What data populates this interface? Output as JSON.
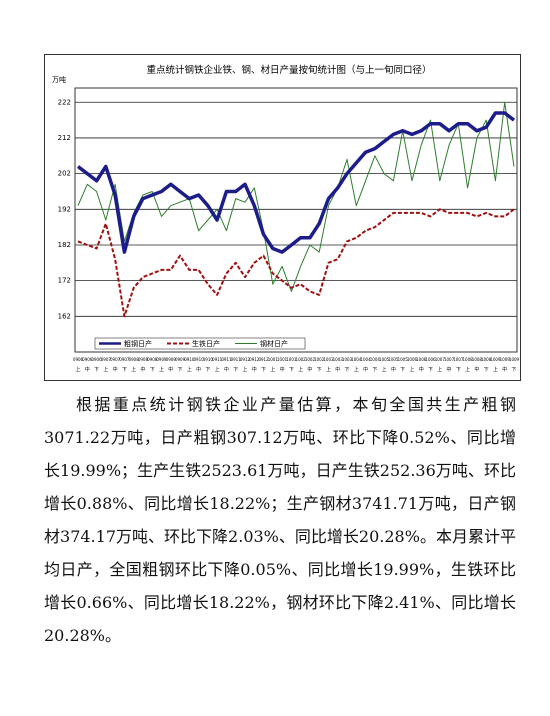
{
  "chart_data": {
    "type": "line",
    "title": "重点统计钢铁企业铁、钢、材日产量按旬统计图（与上一旬同口径）",
    "y_label": "万吨",
    "categories": [
      "0906",
      "0906",
      "0906",
      "0907",
      "0907",
      "0907",
      "0908",
      "0908",
      "0908",
      "0909",
      "0909",
      "0909",
      "0910",
      "0910",
      "0910",
      "0911",
      "0911",
      "0911",
      "0912",
      "0912",
      "0912",
      "1001",
      "1001",
      "1001",
      "1002",
      "1002",
      "1002",
      "1003",
      "1003",
      "1003",
      "1004",
      "1004",
      "1004",
      "1005",
      "1005",
      "1005",
      "1006",
      "1006",
      "1006",
      "1007",
      "1007",
      "1007",
      "1008",
      "1008",
      "1008",
      "1009",
      "1009",
      "1009"
    ],
    "category_periods": [
      "上",
      "中",
      "下",
      "上",
      "中",
      "下",
      "上",
      "中",
      "下",
      "上",
      "中",
      "下",
      "上",
      "中",
      "下",
      "上",
      "中",
      "下",
      "上",
      "中",
      "下",
      "上",
      "中",
      "下",
      "上",
      "中",
      "下",
      "上",
      "中",
      "下",
      "上",
      "中",
      "下",
      "上",
      "中",
      "下",
      "上",
      "中",
      "下",
      "上",
      "中",
      "下",
      "上",
      "中",
      "下",
      "上",
      "中",
      "下"
    ],
    "ylim": [
      152,
      226
    ],
    "yticks": [
      162,
      172,
      182,
      192,
      202,
      212,
      222
    ],
    "grid": true,
    "series": [
      {
        "name": "粗钢日产",
        "color": "#1c1c8a",
        "values": [
          204,
          202,
          200,
          204,
          196,
          180,
          190,
          195,
          196,
          197,
          199,
          197,
          195,
          196,
          193,
          189,
          197,
          197,
          199,
          193,
          185,
          181,
          180,
          182,
          184,
          184,
          188,
          195,
          198,
          202,
          205,
          208,
          209,
          211,
          213,
          214,
          213,
          214,
          216,
          216,
          214,
          216,
          216,
          214,
          215,
          219,
          219,
          217
        ]
      },
      {
        "name": "生铁日产",
        "color": "#a01010",
        "values": [
          183,
          182,
          181,
          188,
          178,
          162,
          170,
          173,
          174,
          175,
          175,
          179,
          175,
          175,
          171,
          168,
          174,
          177,
          173,
          177,
          179,
          174,
          172,
          170,
          171,
          169,
          168,
          177,
          178,
          183,
          184,
          186,
          187,
          189,
          191,
          191,
          191,
          191,
          190,
          192,
          191,
          191,
          191,
          190,
          191,
          190,
          190,
          192
        ]
      },
      {
        "name": "钢材日产",
        "color": "#2e7d2e",
        "values": [
          193,
          199,
          197,
          189,
          199,
          183,
          191,
          196,
          197,
          190,
          193,
          194,
          195,
          186,
          189,
          192,
          186,
          195,
          194,
          198,
          186,
          171,
          176,
          169,
          176,
          182,
          180,
          193,
          198,
          206,
          193,
          200,
          207,
          202,
          200,
          214,
          200,
          210,
          217,
          200,
          210,
          216,
          198,
          212,
          217,
          200,
          222,
          204
        ]
      }
    ]
  },
  "text": "根据重点统计钢铁企业产量估算，本旬全国共生产粗钢3071.22万吨，日产粗钢307.12万吨、环比下降0.52%、同比增长19.99%；生产生铁2523.61万吨，日产生铁252.36万吨、环比增长0.88%、同比增长18.22%；生产钢材3741.71万吨，日产钢材374.17万吨、环比下降2.03%、同比增长20.28%。本月累计平均日产，全国粗钢环比下降0.05%、同比增长19.99%，生铁环比增长0.66%、同比增长18.22%，钢材环比下降2.41%、同比增长20.28%。"
}
